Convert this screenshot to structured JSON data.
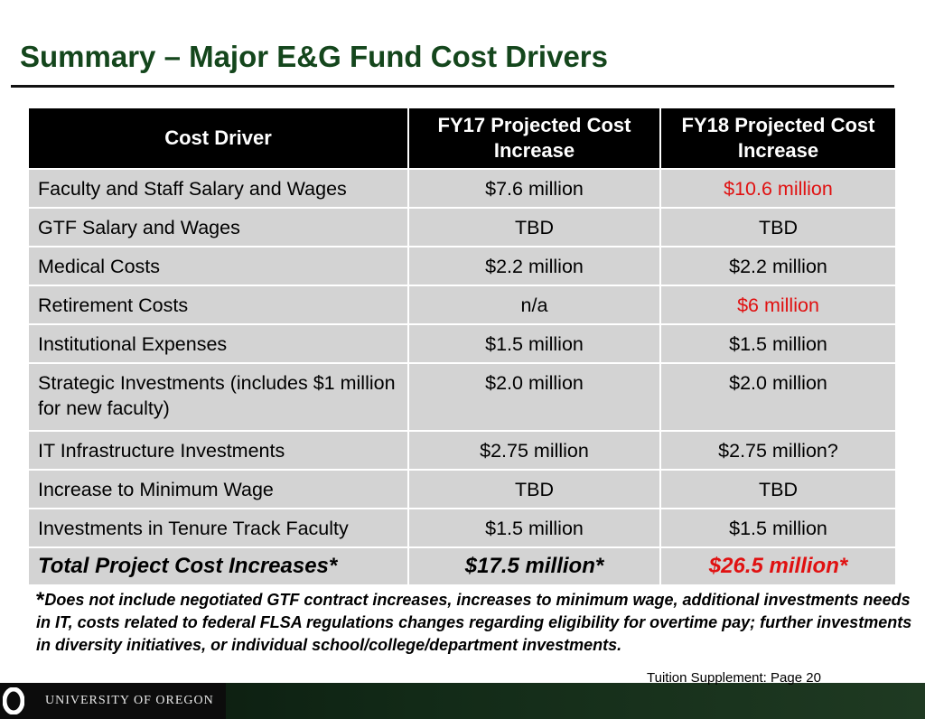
{
  "title": "Summary – Major E&G Fund Cost Drivers",
  "headers": [
    "Cost Driver",
    "FY17 Projected Cost Increase",
    "FY18 Projected Cost Increase"
  ],
  "rows": [
    [
      "Faculty and Staff Salary and Wages",
      "$7.6 million",
      "$10.6 million"
    ],
    [
      "GTF Salary and Wages",
      "TBD",
      "TBD"
    ],
    [
      "Medical Costs",
      "$2.2 million",
      "$2.2 million"
    ],
    [
      "Retirement Costs",
      "n/a",
      "$6 million"
    ],
    [
      "Institutional Expenses",
      "$1.5 million",
      "$1.5 million"
    ],
    [
      "Strategic Investments (includes $1 million for new faculty)",
      "$2.0 million",
      "$2.0 million"
    ],
    [
      "IT Infrastructure Investments",
      "$2.75 million",
      "$2.75 million?"
    ],
    [
      "Increase to Minimum Wage",
      "TBD",
      "TBD"
    ],
    [
      "Investments in Tenure Track Faculty",
      "$1.5 million",
      "$1.5 million"
    ]
  ],
  "total": [
    "Total Project Cost Increases*",
    "$17.5 million*",
    "$26.5 million*"
  ],
  "highlight_color": "#e01111",
  "footnote_star": "*",
  "footnote": "Does not include negotiated GTF contract increases, increases to minimum wage, additional investments needs in IT, costs related to federal FLSA regulations changes regarding eligibility for overtime pay; further investments in diversity initiatives, or individual school/college/department investments.",
  "page_ref": "Tuition Supplement: Page 20",
  "footer": {
    "logo": "university-of-oregon-o-logo",
    "university": "UNIVERSITY OF OREGON"
  }
}
